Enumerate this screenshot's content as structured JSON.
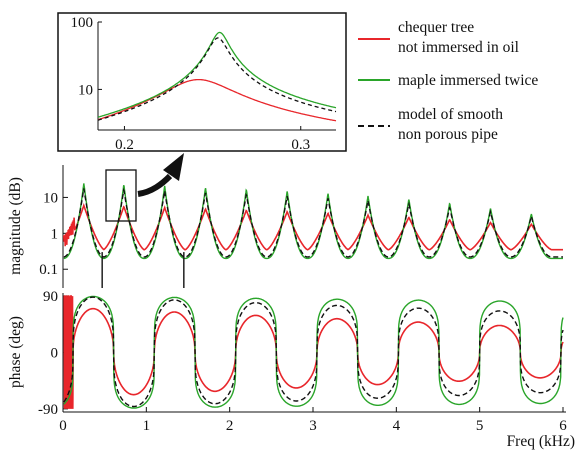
{
  "legend": {
    "entries": [
      {
        "lines": [
          "chequer tree",
          "not immersed in oil"
        ],
        "color": "#e8262b",
        "style": "solid"
      },
      {
        "lines": [
          "maple immersed twice"
        ],
        "color": "#2aa52a",
        "style": "solid"
      },
      {
        "lines": [
          "model of smooth",
          "non porous pipe"
        ],
        "color": "#111111",
        "style": "dashed"
      }
    ]
  },
  "chart_data": [
    {
      "id": "inset",
      "type": "line",
      "yscale": "log",
      "xlim": [
        0.185,
        0.32
      ],
      "ylim": [
        2.5,
        100
      ],
      "xticks": [
        {
          "v": 0.2,
          "label": "0.2"
        },
        {
          "v": 0.3,
          "label": "0.3"
        }
      ],
      "yticks": [
        {
          "v": 10,
          "label": "10"
        },
        {
          "v": 100,
          "label": "100"
        }
      ],
      "series": [
        {
          "color": "#e8262b",
          "style": "solid",
          "f0": 0.242,
          "peak": 14,
          "q": 7
        },
        {
          "color": "#2aa52a",
          "style": "solid",
          "f0": 0.254,
          "peak": 70,
          "q": 28
        },
        {
          "color": "#111111",
          "style": "dashed",
          "f0": 0.253,
          "peak": 58,
          "q": 26
        }
      ]
    },
    {
      "id": "magnitude",
      "type": "line",
      "yscale": "log",
      "ylabel": "magnitude (dB)",
      "xlim": [
        0,
        6
      ],
      "ylim": [
        0.03,
        80
      ],
      "yticks": [
        {
          "v": 0.1,
          "label": "0.1"
        },
        {
          "v": 1,
          "label": "1"
        },
        {
          "v": 10,
          "label": "10"
        }
      ],
      "resonance_freqs_khz": [
        0.25,
        0.73,
        1.22,
        1.71,
        2.2,
        2.69,
        3.18,
        3.66,
        4.15,
        4.64,
        5.13,
        5.62
      ],
      "series": [
        {
          "color": "#e8262b",
          "style": "solid"
        },
        {
          "color": "#2aa52a",
          "style": "solid"
        },
        {
          "color": "#111111",
          "style": "dashed"
        }
      ]
    },
    {
      "id": "phase",
      "type": "line",
      "ylabel": "phase (deg)",
      "xlabel": "Freq (kHz)",
      "xlim": [
        0,
        6
      ],
      "ylim": [
        -95,
        95
      ],
      "xticks": [
        0,
        1,
        2,
        3,
        4,
        5,
        6
      ],
      "yticks": [
        {
          "v": -90,
          "label": "-90"
        },
        {
          "v": 0,
          "label": "0"
        },
        {
          "v": 90,
          "label": "90"
        }
      ],
      "series": [
        {
          "color": "#e8262b",
          "style": "solid"
        },
        {
          "color": "#2aa52a",
          "style": "solid"
        },
        {
          "color": "#111111",
          "style": "dashed"
        }
      ]
    }
  ]
}
